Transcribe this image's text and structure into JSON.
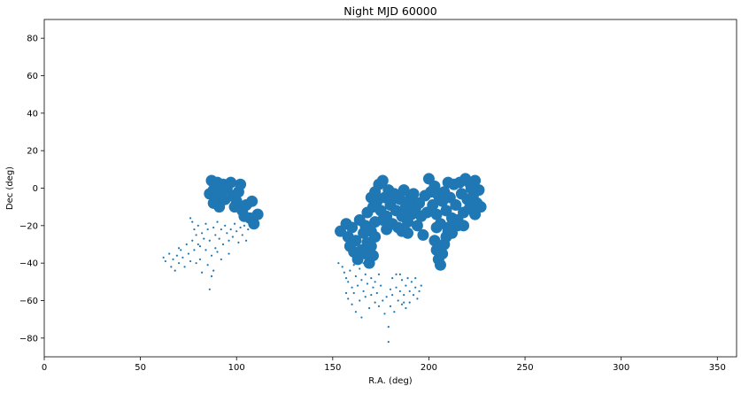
{
  "chart_data": {
    "type": "scatter",
    "title": "Night MJD 60000",
    "xlabel": "R.A. (deg)",
    "ylabel": "Dec (deg)",
    "xlim": [
      0,
      360
    ],
    "ylim": [
      -90,
      90
    ],
    "xticks": [
      0,
      50,
      100,
      150,
      200,
      250,
      300,
      350
    ],
    "yticks": [
      -80,
      -60,
      -40,
      -20,
      0,
      20,
      40,
      60,
      80
    ],
    "grid": false,
    "color": "#1f77b4",
    "series": [
      {
        "marker_size": "large",
        "points": [
          [
            87,
            4
          ],
          [
            88,
            -1
          ],
          [
            89,
            -6
          ],
          [
            90,
            3
          ],
          [
            91,
            -10
          ],
          [
            92,
            -2
          ],
          [
            93,
            2
          ],
          [
            95,
            0
          ],
          [
            97,
            3
          ],
          [
            98,
            -4
          ],
          [
            100,
            -7
          ],
          [
            101,
            -2
          ],
          [
            102,
            2
          ],
          [
            103,
            -12
          ],
          [
            105,
            -9
          ],
          [
            107,
            -16
          ],
          [
            108,
            -7
          ],
          [
            109,
            -19
          ],
          [
            111,
            -14
          ],
          [
            104,
            -15
          ],
          [
            86,
            -3
          ],
          [
            88,
            -8
          ],
          [
            94,
            -6
          ],
          [
            99,
            -10
          ],
          [
            154,
            -23
          ],
          [
            157,
            -19
          ],
          [
            158,
            -26
          ],
          [
            160,
            -21
          ],
          [
            159,
            -31
          ],
          [
            161,
            -34
          ],
          [
            162,
            -28
          ],
          [
            163,
            -38
          ],
          [
            165,
            -33
          ],
          [
            166,
            -24
          ],
          [
            167,
            -35
          ],
          [
            168,
            -29
          ],
          [
            169,
            -40
          ],
          [
            170,
            -31
          ],
          [
            171,
            -36
          ],
          [
            164,
            -17
          ],
          [
            167,
            -20
          ],
          [
            168,
            -13
          ],
          [
            170,
            -23
          ],
          [
            172,
            -18
          ],
          [
            172,
            -26
          ],
          [
            170,
            -5
          ],
          [
            171,
            -10
          ],
          [
            172,
            -2
          ],
          [
            173,
            -7
          ],
          [
            174,
            2
          ],
          [
            175,
            -12
          ],
          [
            176,
            4
          ],
          [
            177,
            -5
          ],
          [
            178,
            -15
          ],
          [
            179,
            -1
          ],
          [
            180,
            -9
          ],
          [
            181,
            -19
          ],
          [
            182,
            -3
          ],
          [
            183,
            -12
          ],
          [
            184,
            -21
          ],
          [
            185,
            -6
          ],
          [
            186,
            -15
          ],
          [
            187,
            -1
          ],
          [
            188,
            -10
          ],
          [
            189,
            -18
          ],
          [
            190,
            -6
          ],
          [
            191,
            -14
          ],
          [
            192,
            -3
          ],
          [
            193,
            -11
          ],
          [
            194,
            -20
          ],
          [
            195,
            -8
          ],
          [
            196,
            -15
          ],
          [
            197,
            -25
          ],
          [
            198,
            -4
          ],
          [
            199,
            -13
          ],
          [
            189,
            -24
          ],
          [
            186,
            -23
          ],
          [
            178,
            -22
          ],
          [
            181,
            -5
          ],
          [
            176,
            -17
          ],
          [
            200,
            5
          ],
          [
            201,
            -2
          ],
          [
            202,
            -9
          ],
          [
            203,
            1
          ],
          [
            204,
            -14
          ],
          [
            205,
            -4
          ],
          [
            206,
            -19
          ],
          [
            207,
            -7
          ],
          [
            208,
            -2
          ],
          [
            209,
            -12
          ],
          [
            210,
            -23
          ],
          [
            210,
            3
          ],
          [
            211,
            -5
          ],
          [
            212,
            -16
          ],
          [
            213,
            2
          ],
          [
            214,
            -9
          ],
          [
            215,
            -20
          ],
          [
            216,
            3
          ],
          [
            217,
            -3
          ],
          [
            218,
            -13
          ],
          [
            219,
            5
          ],
          [
            220,
            -6
          ],
          [
            221,
            -11
          ],
          [
            222,
            0
          ],
          [
            223,
            -4
          ],
          [
            224,
            -14
          ],
          [
            225,
            -8
          ],
          [
            226,
            -1
          ],
          [
            227,
            -10
          ],
          [
            224,
            4
          ],
          [
            221,
            3
          ],
          [
            203,
            -28
          ],
          [
            204,
            -33
          ],
          [
            205,
            -38
          ],
          [
            206,
            -41
          ],
          [
            207,
            -35
          ],
          [
            208,
            -30
          ],
          [
            209,
            -26
          ],
          [
            210,
            -21
          ],
          [
            212,
            -24
          ],
          [
            204,
            -21
          ],
          [
            215,
            -17
          ],
          [
            218,
            -20
          ]
        ]
      },
      {
        "marker_size": "small",
        "points": [
          [
            62,
            -37
          ],
          [
            63,
            -39
          ],
          [
            65,
            -35
          ],
          [
            66,
            -42
          ],
          [
            67,
            -38
          ],
          [
            68,
            -44
          ],
          [
            69,
            -36
          ],
          [
            70,
            -40
          ],
          [
            71,
            -33
          ],
          [
            72,
            -37
          ],
          [
            73,
            -42
          ],
          [
            74,
            -30
          ],
          [
            75,
            -35
          ],
          [
            76,
            -39
          ],
          [
            77,
            -28
          ],
          [
            77,
            -18
          ],
          [
            78,
            -22
          ],
          [
            78,
            -33
          ],
          [
            79,
            -25
          ],
          [
            79,
            -40
          ],
          [
            80,
            -20
          ],
          [
            80,
            -30
          ],
          [
            81,
            -38
          ],
          [
            82,
            -24
          ],
          [
            82,
            -45
          ],
          [
            83,
            -27
          ],
          [
            84,
            -33
          ],
          [
            84,
            -19
          ],
          [
            85,
            -22
          ],
          [
            85,
            -41
          ],
          [
            86,
            -54
          ],
          [
            86,
            -28
          ],
          [
            87,
            -36
          ],
          [
            87,
            -47
          ],
          [
            88,
            -21
          ],
          [
            88,
            -44
          ],
          [
            89,
            -25
          ],
          [
            89,
            -32
          ],
          [
            90,
            -18
          ],
          [
            91,
            -27
          ],
          [
            92,
            -38
          ],
          [
            92,
            -22
          ],
          [
            93,
            -30
          ],
          [
            94,
            -20
          ],
          [
            95,
            -24
          ],
          [
            96,
            -35
          ],
          [
            97,
            -22
          ],
          [
            98,
            -26
          ],
          [
            99,
            -19
          ],
          [
            100,
            -23
          ],
          [
            101,
            -29
          ],
          [
            102,
            -21
          ],
          [
            103,
            -25
          ],
          [
            104,
            -20
          ],
          [
            105,
            -28
          ],
          [
            106,
            -22
          ],
          [
            108,
            -20
          ],
          [
            76,
            -16
          ],
          [
            81,
            -31
          ],
          [
            90,
            -34
          ],
          [
            96,
            -28
          ],
          [
            70,
            -32
          ],
          [
            153,
            -40
          ],
          [
            155,
            -42
          ],
          [
            156,
            -45
          ],
          [
            157,
            -48
          ],
          [
            158,
            -50
          ],
          [
            158,
            -59
          ],
          [
            159,
            -44
          ],
          [
            160,
            -53
          ],
          [
            160,
            -62
          ],
          [
            161,
            -41
          ],
          [
            161,
            -56
          ],
          [
            162,
            -47
          ],
          [
            162,
            -66
          ],
          [
            163,
            -52
          ],
          [
            164,
            -60
          ],
          [
            164,
            -43
          ],
          [
            165,
            -49
          ],
          [
            165,
            -69
          ],
          [
            166,
            -55
          ],
          [
            167,
            -46
          ],
          [
            167,
            -58
          ],
          [
            168,
            -51
          ],
          [
            169,
            -64
          ],
          [
            170,
            -48
          ],
          [
            170,
            -57
          ],
          [
            171,
            -53
          ],
          [
            172,
            -50
          ],
          [
            172,
            -61
          ],
          [
            173,
            -56
          ],
          [
            174,
            -63
          ],
          [
            175,
            -52
          ],
          [
            176,
            -60
          ],
          [
            177,
            -67
          ],
          [
            178,
            -58
          ],
          [
            179,
            -74
          ],
          [
            179,
            -82
          ],
          [
            180,
            -54
          ],
          [
            180,
            -63
          ],
          [
            181,
            -57
          ],
          [
            182,
            -66
          ],
          [
            183,
            -53
          ],
          [
            184,
            -60
          ],
          [
            185,
            -55
          ],
          [
            186,
            -62
          ],
          [
            186,
            -49
          ],
          [
            187,
            -57
          ],
          [
            188,
            -52
          ],
          [
            188,
            -64
          ],
          [
            189,
            -48
          ],
          [
            190,
            -55
          ],
          [
            190,
            -61
          ],
          [
            191,
            -50
          ],
          [
            192,
            -57
          ],
          [
            193,
            -53
          ],
          [
            193,
            -48
          ],
          [
            194,
            -59
          ],
          [
            195,
            -55
          ],
          [
            196,
            -52
          ],
          [
            183,
            -46
          ],
          [
            185,
            -46
          ],
          [
            166,
            -40
          ],
          [
            174,
            -46
          ],
          [
            181,
            -48
          ],
          [
            187,
            -61
          ],
          [
            157,
            -56
          ]
        ]
      }
    ]
  }
}
